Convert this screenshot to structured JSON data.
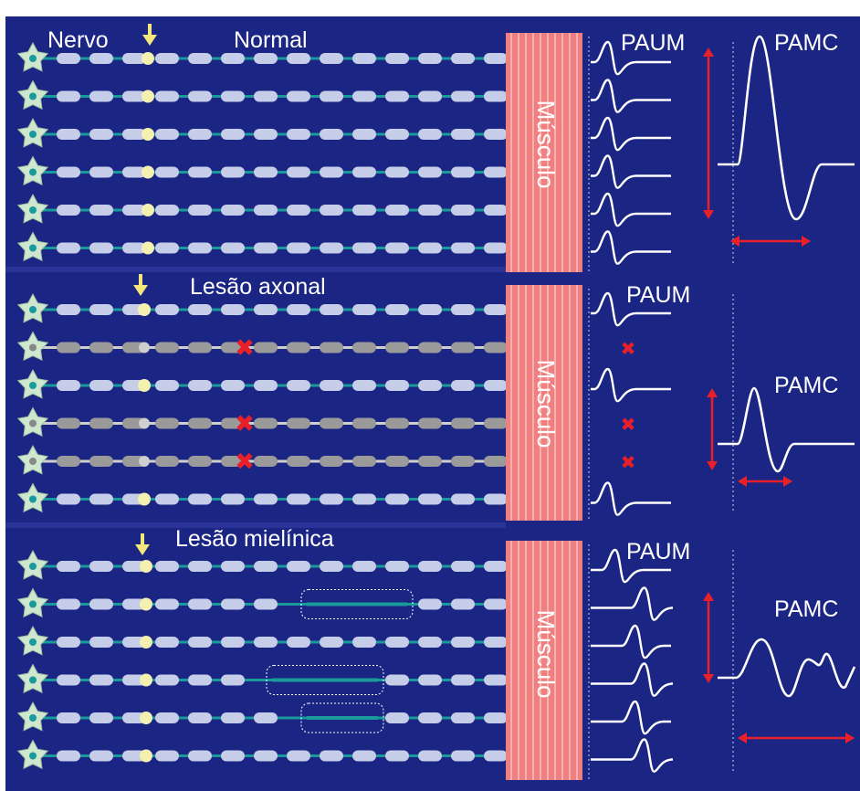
{
  "colors": {
    "background": "#1b2584",
    "axon": "#1a9a9a",
    "myelin": "#c6cde8",
    "myelin_degenerated": "#9a9a9a",
    "muscle": "#f08080",
    "wave": "#ffffff",
    "marker": "#e8202a",
    "stimulus_arrow": "#f2e77a",
    "neuron_body": "#cfe6cf",
    "nucleus": "#1a9a9a"
  },
  "icons": {
    "stimulus": "down-arrow-icon",
    "lesion": "x-mark-icon",
    "neuron": "neuron-body-icon"
  },
  "panels": [
    {
      "id": "normal",
      "nerve_label": "Nervo",
      "title": "Normal",
      "muscle_label": "Músculo",
      "paum_label": "PAUM",
      "pamc_label": "PAMC",
      "fibers": [
        "intact",
        "intact",
        "intact",
        "intact",
        "intact",
        "intact"
      ]
    },
    {
      "id": "axonal",
      "nerve_label": "",
      "title": "Lesão axonal",
      "muscle_label": "Músculo",
      "paum_label": "PAUM",
      "pamc_label": "PAMC",
      "fibers": [
        "intact",
        "lesioned",
        "intact",
        "lesioned",
        "lesioned",
        "intact"
      ]
    },
    {
      "id": "myelin",
      "nerve_label": "",
      "title": "Lesão mielínica",
      "muscle_label": "Músculo",
      "paum_label": "PAUM",
      "pamc_label": "PAMC",
      "fibers": [
        "intact",
        "demyelinated",
        "intact",
        "demyelinated",
        "demyelinated",
        "intact"
      ]
    }
  ]
}
